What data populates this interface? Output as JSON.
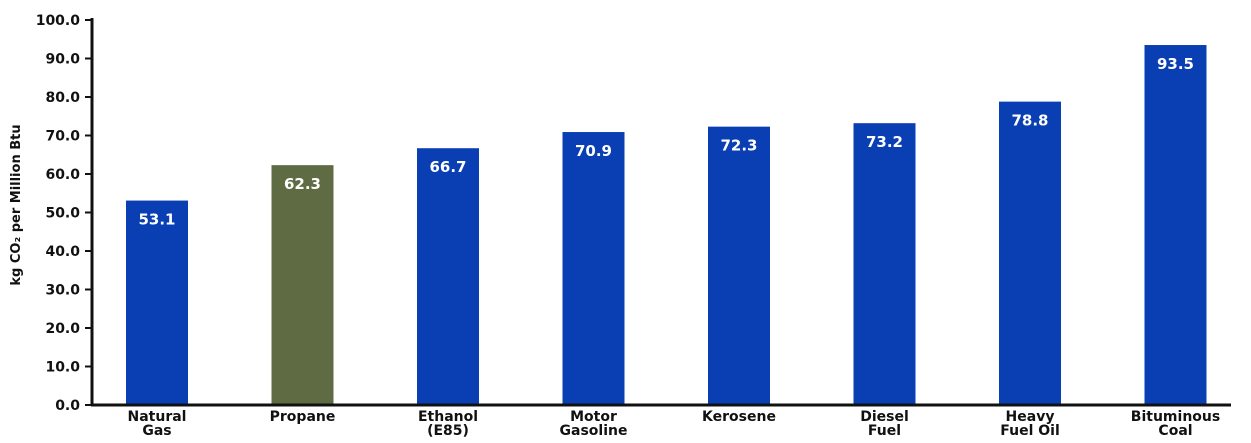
{
  "chart_data": {
    "type": "bar",
    "ylabel": "kg CO₂ per Million Btu",
    "ylim": [
      0,
      100
    ],
    "yticks": [
      "0.0",
      "10.0",
      "20.0",
      "30.0",
      "40.0",
      "50.0",
      "60.0",
      "70.0",
      "80.0",
      "90.0",
      "100.0"
    ],
    "categories": [
      [
        "Natural",
        "Gas"
      ],
      [
        "Propane"
      ],
      [
        "Ethanol",
        "(E85)"
      ],
      [
        "Motor",
        "Gasoline"
      ],
      [
        "Kerosene"
      ],
      [
        "Diesel",
        "Fuel"
      ],
      [
        "Heavy",
        "Fuel Oil"
      ],
      [
        "Bituminous",
        "Coal"
      ]
    ],
    "values": [
      53.1,
      62.3,
      66.7,
      70.9,
      72.3,
      73.2,
      78.8,
      93.5
    ],
    "value_labels": [
      "53.1",
      "62.3",
      "66.7",
      "70.9",
      "72.3",
      "73.2",
      "78.8",
      "93.5"
    ],
    "bar_colors": [
      "#0a3fb4",
      "#5f6b42",
      "#0a3fb4",
      "#0a3fb4",
      "#0a3fb4",
      "#0a3fb4",
      "#0a3fb4",
      "#0a3fb4"
    ],
    "axis_color": "#111111",
    "grid": false,
    "legend": "none"
  }
}
